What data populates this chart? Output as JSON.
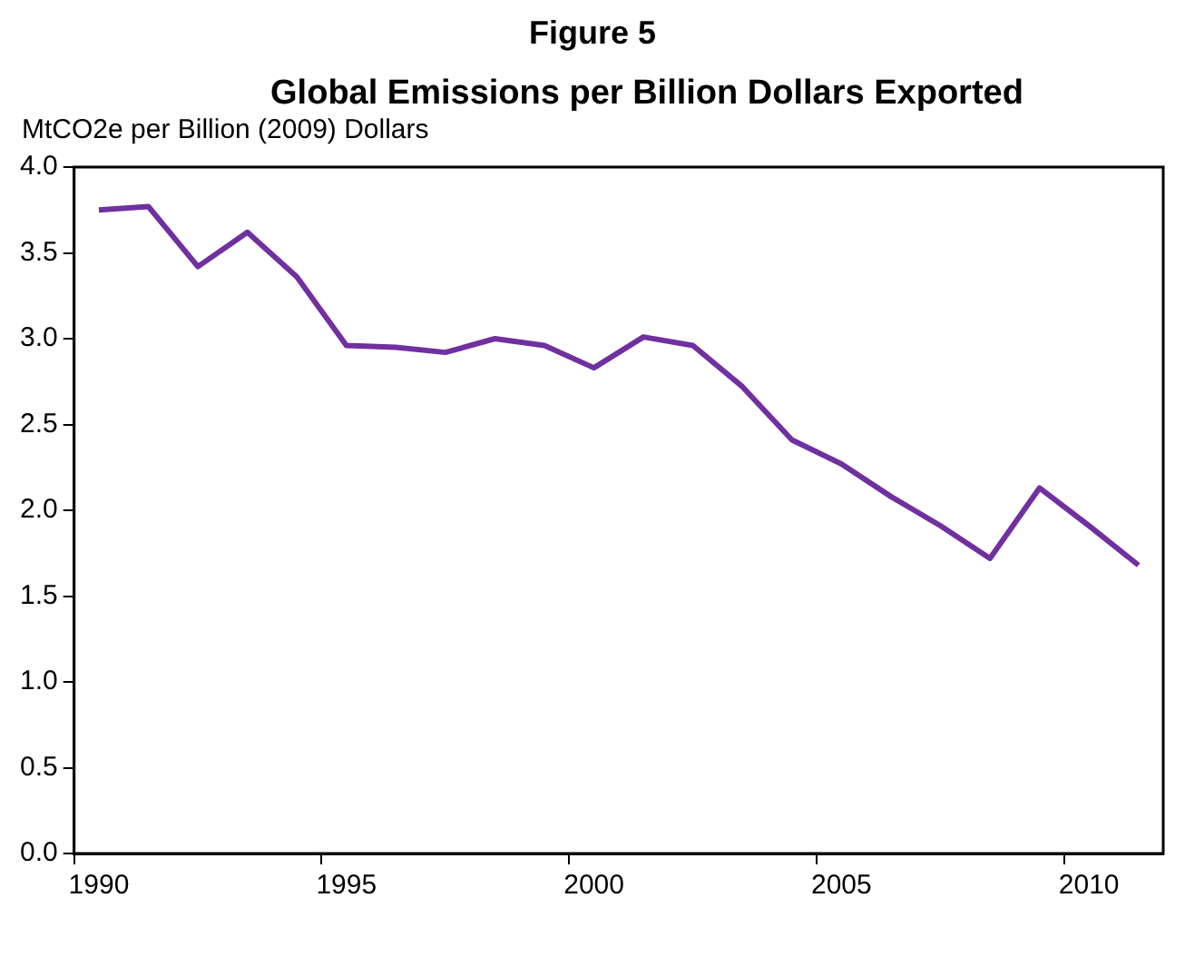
{
  "chart_data": {
    "type": "line",
    "title": "Figure 5",
    "subtitle": "Global  Emissions per Billion Dollars Exported",
    "ylabel": "MtCO2e per Billion (2009) Dollars",
    "categories": [
      "1990",
      null,
      null,
      null,
      null,
      "1995",
      null,
      null,
      null,
      null,
      "2000",
      null,
      null,
      null,
      null,
      "2005",
      null,
      null,
      null,
      null,
      "2010",
      null
    ],
    "series": [
      {
        "color": "#7030a0",
        "values": [
          3.75,
          3.77,
          3.42,
          3.62,
          3.36,
          2.96,
          2.95,
          2.92,
          3.0,
          2.96,
          2.83,
          3.01,
          2.96,
          2.72,
          2.41,
          2.27,
          2.08,
          1.91,
          1.72,
          2.13,
          1.91,
          1.68
        ]
      }
    ],
    "ylim": [
      0,
      4
    ],
    "yticks": [
      {
        "value": 0,
        "label": "0.0"
      },
      {
        "value": 0.5,
        "label": "0.5"
      },
      {
        "value": 1,
        "label": "1.0"
      },
      {
        "value": 1.5,
        "label": "1.5"
      },
      {
        "value": 2,
        "label": "2.0"
      },
      {
        "value": 2.5,
        "label": "2.5"
      },
      {
        "value": 3,
        "label": "3.0"
      },
      {
        "value": 3.5,
        "label": "3.5"
      },
      {
        "value": 4,
        "label": "4.0"
      }
    ],
    "grid": false,
    "legend": false,
    "marker": "none",
    "line_style": "solid"
  }
}
